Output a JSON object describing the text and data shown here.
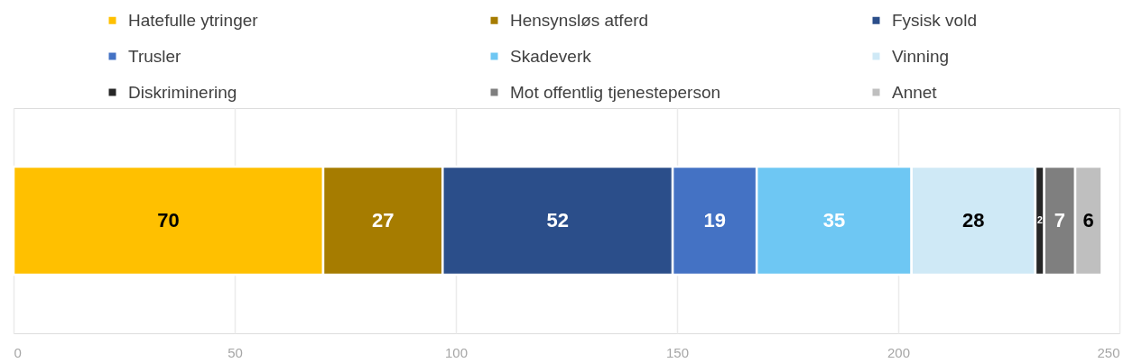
{
  "chart_data": {
    "type": "bar",
    "orientation": "horizontal",
    "stacked": true,
    "categories": [
      null
    ],
    "series": [
      {
        "name": "Hatefulle ytringer",
        "color": "#ffc000",
        "values": [
          70
        ]
      },
      {
        "name": "Hensynsløs atferd",
        "color": "#a67c00",
        "values": [
          27
        ]
      },
      {
        "name": "Fysisk vold",
        "color": "#2b4e8a",
        "values": [
          52
        ]
      },
      {
        "name": "Trusler",
        "color": "#4472c4",
        "values": [
          19
        ]
      },
      {
        "name": "Skadeverk",
        "color": "#6ec7f3",
        "values": [
          35
        ]
      },
      {
        "name": "Vinning",
        "color": "#cfe9f6",
        "values": [
          28
        ]
      },
      {
        "name": "Diskriminering",
        "color": "#262626",
        "values": [
          2
        ]
      },
      {
        "name": "Mot offentlig tjenesteperson",
        "color": "#7f7f7f",
        "values": [
          7
        ]
      },
      {
        "name": "Annet",
        "color": "#bfbfbf",
        "values": [
          6
        ]
      }
    ],
    "xlim": [
      0,
      250
    ],
    "xticks": [
      0,
      50,
      100,
      150,
      200,
      250
    ],
    "grid": "x",
    "legend": "top",
    "data_labels": true
  }
}
